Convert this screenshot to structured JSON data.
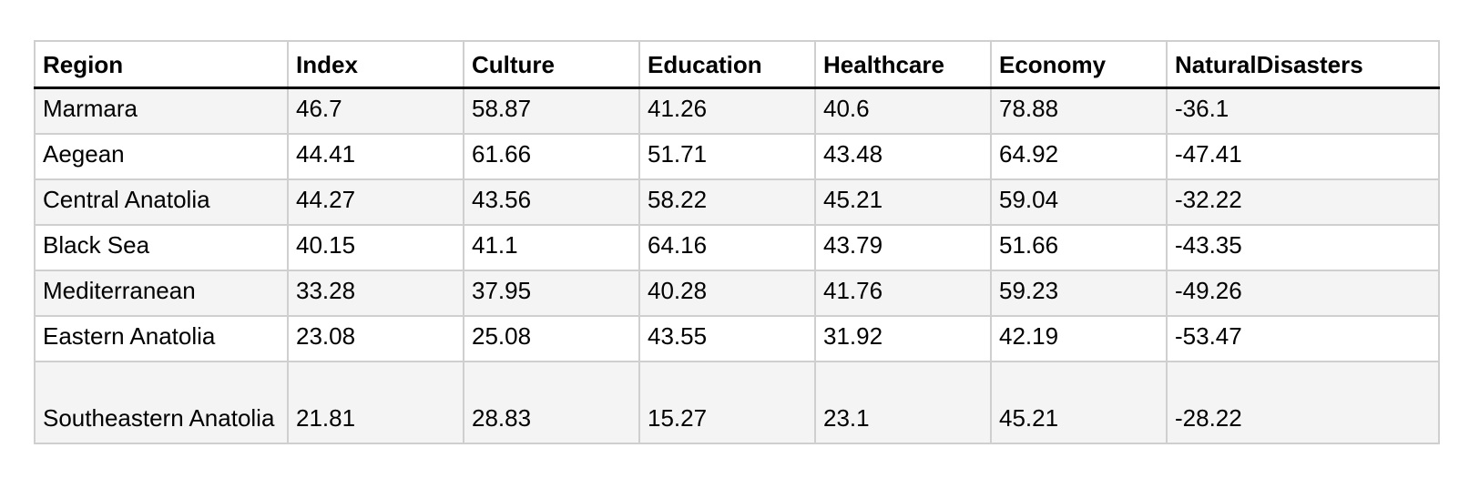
{
  "chart_data": {
    "type": "table",
    "columns": [
      "Region",
      "Index",
      "Culture",
      "Education",
      "Healthcare",
      "Economy",
      "NaturalDisasters"
    ],
    "rows": [
      [
        "Marmara",
        "46.7",
        "58.87",
        "41.26",
        "40.6",
        "78.88",
        "-36.1"
      ],
      [
        "Aegean",
        "44.41",
        "61.66",
        "51.71",
        "43.48",
        "64.92",
        "-47.41"
      ],
      [
        "Central Anatolia",
        "44.27",
        "43.56",
        "58.22",
        "45.21",
        "59.04",
        "-32.22"
      ],
      [
        "Black Sea",
        "40.15",
        "41.1",
        "64.16",
        "43.79",
        "51.66",
        "-43.35"
      ],
      [
        "Mediterranean",
        "33.28",
        "37.95",
        "40.28",
        "41.76",
        "59.23",
        "-49.26"
      ],
      [
        "Eastern Anatolia",
        "23.08",
        "25.08",
        "43.55",
        "31.92",
        "42.19",
        "-53.47"
      ],
      [
        "Southeastern Anatolia",
        "21.81",
        "28.83",
        "15.27",
        "23.1",
        "45.21",
        "-28.22"
      ]
    ]
  }
}
